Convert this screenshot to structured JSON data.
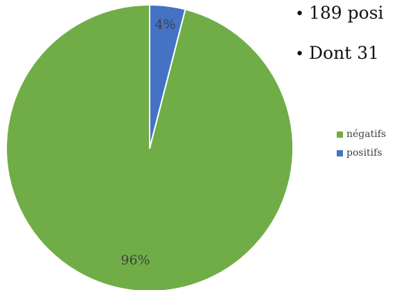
{
  "chart_data": {
    "type": "pie",
    "categories": [
      "négatifs",
      "positifs"
    ],
    "values": [
      96,
      4
    ],
    "data_labels": [
      "96%",
      "4%"
    ],
    "colors": [
      "#70AD47",
      "#4472C4"
    ],
    "legend_position": "right",
    "start": "top",
    "direction": "counterclockwise"
  },
  "bullets": [
    {
      "marker": "•",
      "text": "189 posi"
    },
    {
      "marker": "•",
      "text": "Dont 31"
    }
  ]
}
